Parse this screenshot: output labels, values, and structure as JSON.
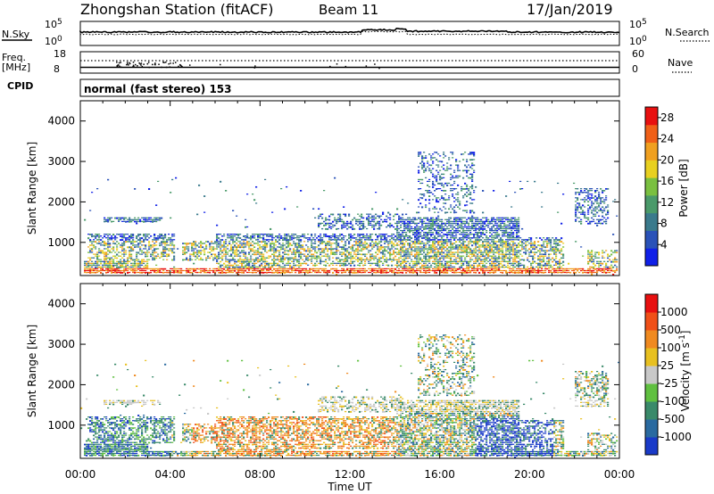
{
  "header": {
    "station": "Zhongshan Station (fitACF)",
    "beam": "Beam 11",
    "date": "17/Jan/2019"
  },
  "panels": {
    "nsky": {
      "label": "N.Sky",
      "tick_top": "10^5",
      "tick_bottom": "10^0"
    },
    "nsearch": {
      "label": "N.Search",
      "tick_top": "10^5",
      "tick_bottom": "10^0"
    },
    "freq": {
      "label_1": "Freq.",
      "label_2": "[MHz]",
      "tick_top": "18",
      "tick_bottom": "8"
    },
    "nave": {
      "label": "Nave",
      "tick_top": "60",
      "tick_bottom": "0"
    },
    "cpid": {
      "label": "CPID",
      "mode": "normal (fast stereo) 153"
    }
  },
  "chart_data": [
    {
      "type": "heatmap",
      "name": "power",
      "ylabel": "Slant Range [km]",
      "xlabel": "Time UT",
      "x_ticks": [
        "00:00",
        "04:00",
        "08:00",
        "12:00",
        "16:00",
        "20:00",
        "00:00"
      ],
      "y_ticks": [
        "1000",
        "2000",
        "3000",
        "4000"
      ],
      "ylim": [
        180,
        4500
      ],
      "colorbar": {
        "label": "Power [dB]",
        "ticks": [
          "4",
          "8",
          "12",
          "16",
          "20",
          "24",
          "28"
        ],
        "range": [
          0,
          30
        ],
        "colors": [
          "#1020e8",
          "#2a52b8",
          "#3a7a8c",
          "#4a9a6a",
          "#7ac040",
          "#e8d020",
          "#f0a020",
          "#f06018",
          "#e81010"
        ]
      }
    },
    {
      "type": "heatmap",
      "name": "velocity",
      "ylabel": "Slant Range [km]",
      "xlabel": "Time UT",
      "x_ticks": [
        "00:00",
        "04:00",
        "08:00",
        "12:00",
        "16:00",
        "20:00",
        "00:00"
      ],
      "y_ticks": [
        "1000",
        "2000",
        "3000",
        "4000"
      ],
      "ylim": [
        180,
        4500
      ],
      "colorbar": {
        "label": "Velocity [m s^-1]",
        "ticks": [
          "1000",
          "500",
          "100",
          "25",
          "-25",
          "-100",
          "-500",
          "-1000"
        ],
        "colors": [
          "#1a3ac8",
          "#2a6aa0",
          "#3a8a6a",
          "#60c040",
          "#c8c8c8",
          "#e8c020",
          "#f08a20",
          "#f05018",
          "#e81010"
        ]
      }
    }
  ]
}
